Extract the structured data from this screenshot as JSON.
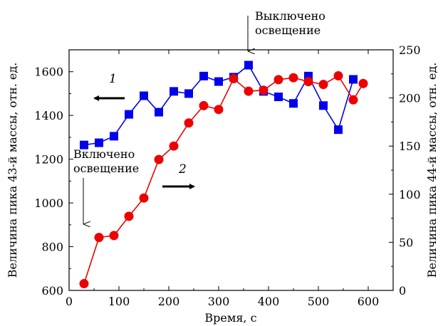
{
  "chart_data": {
    "type": "line",
    "xlabel": "Время, с",
    "ylabel_left": "Величина пика 43-й массы, отн. ед.",
    "ylabel_right": "Величина пика 44-й массы, отн. ед.",
    "xlim": [
      0,
      650
    ],
    "ylim_left": [
      600,
      1700
    ],
    "ylim_right": [
      0,
      250
    ],
    "x_ticks": [
      0,
      100,
      200,
      300,
      400,
      500,
      600
    ],
    "y_ticks_left": [
      600,
      800,
      1000,
      1200,
      1400,
      1600
    ],
    "y_ticks_right": [
      0,
      50,
      100,
      150,
      200,
      250
    ],
    "grid": false,
    "series": [
      {
        "name": "1",
        "axis": "left",
        "marker": "square",
        "color": "#0000ee",
        "x": [
          30,
          60,
          90,
          120,
          150,
          180,
          210,
          240,
          270,
          300,
          330,
          360,
          390,
          420,
          450,
          480,
          510,
          540,
          570
        ],
        "y": [
          1265,
          1275,
          1305,
          1405,
          1490,
          1415,
          1510,
          1500,
          1580,
          1555,
          1575,
          1630,
          1510,
          1485,
          1455,
          1580,
          1445,
          1335,
          1565
        ]
      },
      {
        "name": "2",
        "axis": "right",
        "marker": "circle",
        "color": "#ee0000",
        "x": [
          30,
          60,
          90,
          120,
          150,
          180,
          210,
          240,
          270,
          300,
          330,
          360,
          390,
          420,
          450,
          480,
          510,
          540,
          570,
          590
        ],
        "y": [
          7,
          55,
          57,
          77,
          96,
          136,
          150,
          174,
          192,
          188,
          220,
          207,
          208,
          219,
          221,
          217,
          214,
          223,
          198,
          215
        ]
      }
    ],
    "annotations": {
      "light_on": "Включено освещение",
      "light_on_line1": "Включено",
      "light_on_line2": "освещение",
      "light_off": "Выключено освещение",
      "light_off_line1": "Выключено",
      "light_off_line2": "освещение",
      "curve1_label": "1",
      "curve2_label": "2"
    }
  }
}
